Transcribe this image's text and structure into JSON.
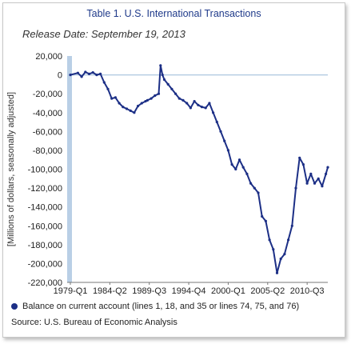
{
  "title": "Table 1. U.S. International Transactions",
  "subtitle": "Release Date: September 19, 2013",
  "source": "Source: U.S. Bureau of Economic Analysis",
  "colors": {
    "series": "#1c2f86",
    "axis_bar": "#b9cfe6",
    "zero_line": "#b7cde3",
    "title": "#1f3a8a"
  },
  "chart_data": {
    "type": "line",
    "title": "Table 1. U.S. International Transactions",
    "ylabel": "[Millions of dollars, seasonally adjusted]",
    "xlabel": "",
    "ylim": [
      -220000,
      20000
    ],
    "yticks": [
      20000,
      0,
      -20000,
      -40000,
      -60000,
      -80000,
      -100000,
      -120000,
      -140000,
      -160000,
      -180000,
      -200000,
      -220000
    ],
    "ytick_labels": [
      "20,000",
      "0",
      "-20,000",
      "-40,000",
      "-60,000",
      "-80,000",
      "-100,000",
      "-120,000",
      "-140,000",
      "-160,000",
      "-180,000",
      "-200,000",
      "-220,000"
    ],
    "xlim": [
      "1979-Q1",
      "2013-Q2"
    ],
    "xtick_labels": [
      "1979-Q1",
      "1984-Q2",
      "1989-Q3",
      "1994-Q4",
      "2000-Q1",
      "2005-Q2",
      "2010-Q3"
    ],
    "grid": false,
    "legend": "bottom",
    "series": [
      {
        "name": "Balance on current account (lines 1, 18, and 35 or lines 74, 75, and 76)",
        "points": [
          [
            "1979-Q1",
            0
          ],
          [
            "1980-Q1",
            2000
          ],
          [
            "1980-Q3",
            -2000
          ],
          [
            "1981-Q1",
            3000
          ],
          [
            "1981-Q3",
            1000
          ],
          [
            "1982-Q1",
            2500
          ],
          [
            "1982-Q3",
            0
          ],
          [
            "1983-Q1",
            1000
          ],
          [
            "1983-Q3",
            -8000
          ],
          [
            "1984-Q1",
            -15000
          ],
          [
            "1984-Q3",
            -25000
          ],
          [
            "1985-Q1",
            -24000
          ],
          [
            "1985-Q3",
            -30000
          ],
          [
            "1986-Q1",
            -34000
          ],
          [
            "1986-Q3",
            -36000
          ],
          [
            "1987-Q1",
            -38000
          ],
          [
            "1987-Q3",
            -40000
          ],
          [
            "1988-Q1",
            -33000
          ],
          [
            "1988-Q3",
            -30000
          ],
          [
            "1989-Q1",
            -28000
          ],
          [
            "1989-Q2",
            -27000
          ],
          [
            "1989-Q4",
            -25000
          ],
          [
            "1990-Q2",
            -22000
          ],
          [
            "1990-Q4",
            -20000
          ],
          [
            "1991-Q1",
            10000
          ],
          [
            "1991-Q2",
            0
          ],
          [
            "1991-Q3",
            -5000
          ],
          [
            "1992-Q1",
            -10000
          ],
          [
            "1992-Q3",
            -15000
          ],
          [
            "1993-Q1",
            -20000
          ],
          [
            "1993-Q3",
            -25000
          ],
          [
            "1994-Q1",
            -27000
          ],
          [
            "1994-Q3",
            -30000
          ],
          [
            "1995-Q1",
            -35000
          ],
          [
            "1995-Q3",
            -28000
          ],
          [
            "1996-Q1",
            -32000
          ],
          [
            "1996-Q3",
            -34000
          ],
          [
            "1997-Q1",
            -35000
          ],
          [
            "1997-Q3",
            -30000
          ],
          [
            "1998-Q1",
            -40000
          ],
          [
            "1998-Q3",
            -50000
          ],
          [
            "1999-Q1",
            -60000
          ],
          [
            "1999-Q3",
            -70000
          ],
          [
            "2000-Q1",
            -80000
          ],
          [
            "2000-Q3",
            -95000
          ],
          [
            "2001-Q1",
            -100000
          ],
          [
            "2001-Q3",
            -90000
          ],
          [
            "2002-Q1",
            -98000
          ],
          [
            "2002-Q3",
            -105000
          ],
          [
            "2003-Q1",
            -115000
          ],
          [
            "2003-Q3",
            -120000
          ],
          [
            "2004-Q1",
            -125000
          ],
          [
            "2004-Q3",
            -150000
          ],
          [
            "2005-Q1",
            -155000
          ],
          [
            "2005-Q3",
            -175000
          ],
          [
            "2006-Q1",
            -185000
          ],
          [
            "2006-Q3",
            -210000
          ],
          [
            "2007-Q1",
            -195000
          ],
          [
            "2007-Q3",
            -190000
          ],
          [
            "2008-Q1",
            -175000
          ],
          [
            "2008-Q3",
            -160000
          ],
          [
            "2009-Q1",
            -120000
          ],
          [
            "2009-Q3",
            -88000
          ],
          [
            "2010-Q1",
            -95000
          ],
          [
            "2010-Q3",
            -115000
          ],
          [
            "2011-Q1",
            -105000
          ],
          [
            "2011-Q3",
            -115000
          ],
          [
            "2012-Q1",
            -110000
          ],
          [
            "2012-Q3",
            -118000
          ],
          [
            "2013-Q1",
            -105000
          ],
          [
            "2013-Q2",
            -98000
          ]
        ]
      }
    ]
  }
}
